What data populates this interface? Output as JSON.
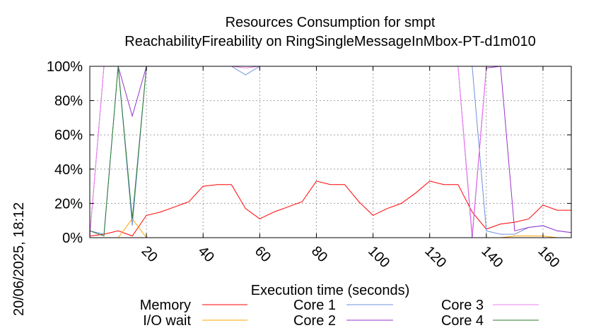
{
  "chart_data": {
    "type": "line",
    "title": "Resources Consumption for smpt",
    "subtitle": "ReachabilityFireability on RingSingleMessageInMbox-PT-d1m010",
    "xlabel": "Execution time (seconds)",
    "ylabel": "",
    "side_label": "20/06/2025, 18:12",
    "xlim": [
      0,
      170
    ],
    "ylim": [
      0,
      100
    ],
    "x_ticks": [
      20,
      40,
      60,
      80,
      100,
      120,
      140,
      160
    ],
    "x_tick_labels": [
      "20",
      "40",
      "60",
      "80",
      "100",
      "120",
      "140",
      "160"
    ],
    "y_ticks": [
      0,
      20,
      40,
      60,
      80,
      100
    ],
    "y_tick_labels": [
      "0%",
      "20%",
      "40%",
      "60%",
      "80%",
      "100%"
    ],
    "grid": true,
    "legend_position": "bottom",
    "series": [
      {
        "name": "Memory",
        "color": "#ff0000",
        "x": [
          0,
          5,
          10,
          15,
          20,
          25,
          30,
          35,
          40,
          45,
          50,
          55,
          60,
          65,
          70,
          75,
          80,
          85,
          90,
          95,
          100,
          105,
          110,
          115,
          120,
          125,
          130,
          135,
          140,
          145,
          150,
          155,
          160,
          165,
          170
        ],
        "y": [
          1,
          2,
          4,
          1,
          13,
          15,
          18,
          21,
          30,
          31,
          31,
          17,
          11,
          15,
          18,
          21,
          33,
          31,
          31,
          21,
          13,
          17,
          20,
          26,
          33,
          31,
          31,
          15,
          5,
          8,
          9,
          11,
          19,
          16,
          16
        ]
      },
      {
        "name": "I/O wait",
        "color": "#ffa500",
        "x": [
          0,
          5,
          10,
          15,
          20,
          25,
          140,
          145,
          150,
          155,
          160,
          165,
          170
        ],
        "y": [
          0,
          0,
          0,
          11,
          0,
          0,
          0,
          0,
          1,
          1,
          1,
          0,
          0
        ]
      },
      {
        "name": "Core 1",
        "color": "#6f8fdf",
        "x": [
          0,
          5,
          10,
          15,
          20,
          25,
          50,
          55,
          60,
          130,
          135,
          140,
          145,
          150,
          155,
          160,
          165,
          170
        ],
        "y": [
          4,
          2,
          100,
          7,
          100,
          100,
          100,
          95,
          100,
          100,
          100,
          4,
          2,
          2,
          6,
          7,
          4,
          3
        ]
      },
      {
        "name": "Core 2",
        "color": "#9932cc",
        "x": [
          0,
          5,
          10,
          15,
          20,
          25,
          130,
          135,
          140,
          145,
          150,
          155,
          160,
          165,
          170
        ],
        "y": [
          1,
          100,
          100,
          71,
          100,
          100,
          100,
          0,
          99,
          100,
          4,
          6,
          7,
          4,
          3
        ]
      },
      {
        "name": "Core 3",
        "color": "#ee82ee",
        "x": [
          0,
          5,
          10,
          15,
          20,
          25,
          50,
          55,
          60,
          130,
          135,
          140,
          145,
          150,
          155,
          160,
          165,
          170
        ],
        "y": [
          1,
          100,
          100,
          100,
          100,
          100,
          100,
          99,
          100,
          100,
          2,
          100,
          100,
          100,
          100,
          100,
          100,
          100
        ]
      },
      {
        "name": "Core 4",
        "color": "#2e7d2e",
        "x": [
          0,
          5,
          10,
          15,
          20,
          25,
          140,
          145,
          150,
          155,
          160,
          165,
          170
        ],
        "y": [
          4,
          1,
          100,
          11,
          100,
          100,
          100,
          100,
          100,
          100,
          100,
          100,
          100
        ]
      }
    ]
  }
}
